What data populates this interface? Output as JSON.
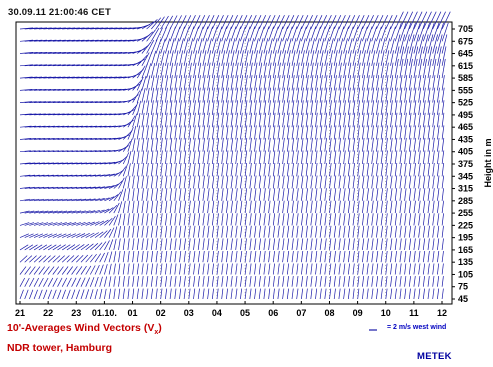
{
  "header": {
    "timestamp": "30.09.11 21:00:46  CET"
  },
  "chart_data": {
    "type": "vector field",
    "title": "10'-Averages Wind Vectors (V",
    "title_subscript": "x",
    "title_suffix": ")",
    "subtitle": "NDR tower, Hamburg",
    "ylabel": "Height in m",
    "x_tick_labels": [
      "21",
      "22",
      "23",
      "01.10.",
      "01",
      "02",
      "03",
      "04",
      "05",
      "06",
      "07",
      "08",
      "09",
      "10",
      "11",
      "12"
    ],
    "y_tick_labels": [
      705,
      675,
      645,
      615,
      585,
      555,
      525,
      495,
      465,
      435,
      405,
      375,
      345,
      315,
      285,
      255,
      225,
      195,
      165,
      135,
      105,
      75,
      45
    ],
    "heights": [
      45,
      75,
      105,
      135,
      165,
      195,
      225,
      255,
      285,
      315,
      345,
      375,
      405,
      435,
      465,
      495,
      525,
      555,
      585,
      615,
      645,
      675,
      705
    ],
    "time_range_h": [
      0,
      15
    ],
    "column_step_h": 0.1667,
    "reference_vector": {
      "speed_ms": 2,
      "label": "= 2 m/s west wind"
    },
    "colors": {
      "vector": "#1a1aa8",
      "title": "#c40000",
      "axis": "#000000"
    }
  },
  "brand": {
    "logo_text": "METEK"
  }
}
